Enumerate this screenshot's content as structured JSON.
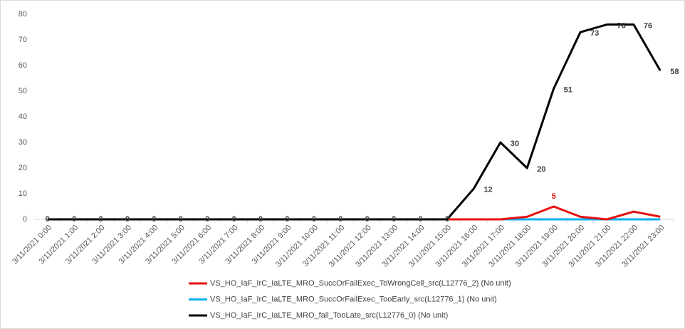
{
  "chart_data": {
    "type": "line",
    "categories": [
      "3/11/2021 0:00",
      "3/11/2021 1:00",
      "3/11/2021 2:00",
      "3/11/2021 3:00",
      "3/11/2021 4:00",
      "3/11/2021 5:00",
      "3/11/2021 6:00",
      "3/11/2021 7:00",
      "3/11/2021 8:00",
      "3/11/2021 9:00",
      "3/11/2021 10:00",
      "3/11/2021 11:00",
      "3/11/2021 12:00",
      "3/11/2021 13:00",
      "3/11/2021 14:00",
      "3/11/2021 15:00",
      "3/11/2021 16:00",
      "3/11/2021 17:00",
      "3/11/2021 18:00",
      "3/11/2021 19:00",
      "3/11/2021 20:00",
      "3/11/2021 21:00",
      "3/11/2021 22:00",
      "3/11/2021 23:00"
    ],
    "series": [
      {
        "name": "VS_HO_IaF_IrC_IaLTE_MRO_SuccOrFailExec_ToWrongCell_src(L12776_2) (No unit)",
        "color": "#e81010",
        "values": [
          0,
          0,
          0,
          0,
          0,
          0,
          0,
          0,
          0,
          0,
          0,
          0,
          0,
          0,
          0,
          0,
          0,
          0,
          1,
          5,
          1,
          0,
          3,
          1
        ],
        "value_labels": [
          null,
          null,
          null,
          null,
          null,
          null,
          null,
          null,
          null,
          null,
          null,
          null,
          null,
          null,
          null,
          null,
          null,
          null,
          null,
          "5",
          null,
          null,
          null,
          null
        ]
      },
      {
        "name": "VS_HO_IaF_IrC_IaLTE_MRO_SuccOrFailExec_TooEarly_src(L12776_1) (No unit)",
        "color": "#00b0f0",
        "values": [
          0,
          0,
          0,
          0,
          0,
          0,
          0,
          0,
          0,
          0,
          0,
          0,
          0,
          0,
          0,
          0,
          0,
          0,
          0,
          0,
          0,
          0,
          0,
          0
        ]
      },
      {
        "name": "VS_HO_IaF_IrC_IaLTE_MRO_fail_TooLate_src(L12776_0) (No unit)",
        "color": "#000000",
        "values": [
          0,
          0,
          0,
          0,
          0,
          0,
          0,
          0,
          0,
          0,
          0,
          0,
          0,
          0,
          0,
          0,
          12,
          30,
          20,
          51,
          73,
          76,
          76,
          58
        ],
        "data_labels": true
      }
    ],
    "ylim": [
      0,
      80
    ],
    "yticks": [
      0,
      10,
      20,
      30,
      40,
      50,
      60,
      70,
      80
    ],
    "grid": false
  }
}
